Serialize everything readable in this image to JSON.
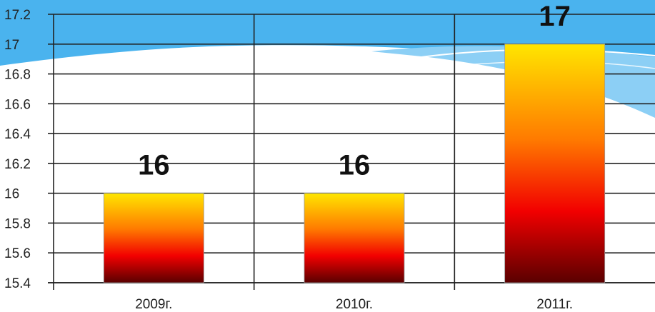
{
  "chart_data": {
    "type": "bar",
    "categories": [
      "2009г.",
      "2010г.",
      "2011г."
    ],
    "values": [
      16,
      16,
      17
    ],
    "data_labels": [
      "16",
      "16",
      "17"
    ],
    "y_ticks": [
      "15.4",
      "15.6",
      "15.8",
      "16",
      "16.2",
      "16.4",
      "16.6",
      "16.8",
      "17",
      "17.2"
    ],
    "ylim": [
      15.4,
      17.2
    ],
    "grid": true,
    "legend": "none",
    "title": "",
    "xlabel": "",
    "ylabel": ""
  },
  "colors": {
    "background_sky": "#4ab3ee",
    "wave_light": "#8ccff5",
    "bar_top": "#ffe600",
    "bar_mid": "#ff7a00",
    "bar_low": "#f20000",
    "bar_bottom": "#5a0000",
    "gridline": "#222222"
  }
}
